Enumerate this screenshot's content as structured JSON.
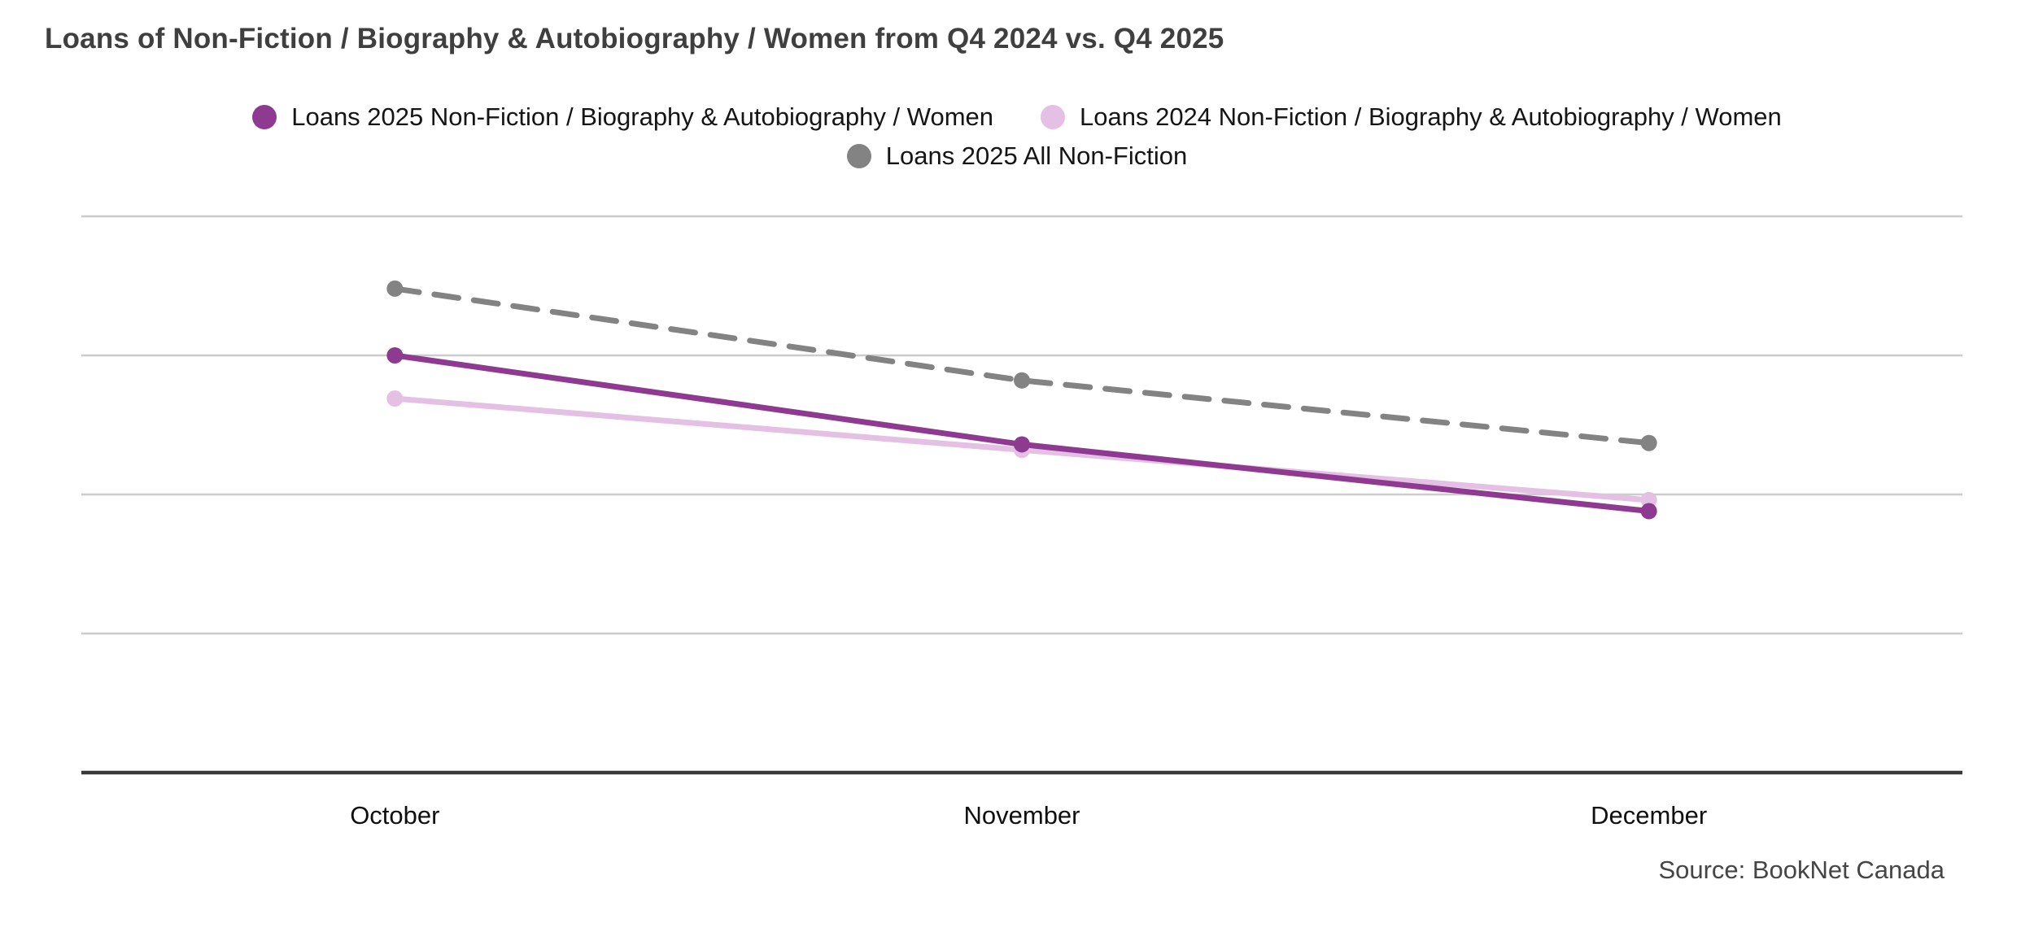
{
  "chart_data": {
    "type": "line",
    "title": "Loans of Non-Fiction / Biography & Autobiography / Women from Q4 2024 vs. Q4 2025",
    "categories": [
      "October",
      "November",
      "December"
    ],
    "series": [
      {
        "name": "Loans 2025 Non-Fiction / Biography & Autobiography / Women",
        "color": "#8e3a90",
        "line_style": "solid",
        "values": [
          3.0,
          2.36,
          1.88
        ]
      },
      {
        "name": "Loans 2024 Non-Fiction / Biography & Autobiography / Women",
        "color": "#e4c0e4",
        "line_style": "solid",
        "values": [
          2.69,
          2.32,
          1.96
        ]
      },
      {
        "name": "Loans 2025 All Non-Fiction",
        "color": "#838383",
        "line_style": "dashed",
        "values": [
          3.48,
          2.82,
          2.37
        ]
      }
    ],
    "y_axis_labels_visible": false,
    "value_scale": "relative gridline units (y-axis unlabeled)",
    "ylim": [
      0,
      4
    ],
    "gridlines": [
      1,
      2,
      3,
      4
    ],
    "grid": "horizontal only",
    "legend_position": "top-center",
    "source": "Source: BookNet Canada"
  },
  "colors": {
    "gridline": "#cccccc",
    "axis_line": "#383838",
    "title_text": "#3f3f3f",
    "label_text": "#0f0f0f",
    "source_text": "#454545",
    "background": "#ffffff"
  }
}
